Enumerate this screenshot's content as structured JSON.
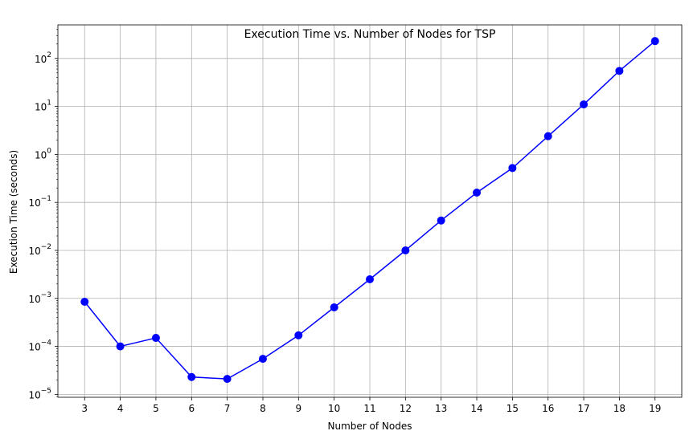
{
  "chart_data": {
    "type": "line",
    "title": "Execution Time vs. Number of Nodes for TSP",
    "xlabel": "Number of Nodes",
    "ylabel": "Execution Time (seconds)",
    "yscale": "log",
    "xlim": [
      2.25,
      19.75
    ],
    "ylim": [
      8.7e-06,
      500
    ],
    "grid": true,
    "x": [
      3,
      4,
      5,
      6,
      7,
      8,
      9,
      10,
      11,
      12,
      13,
      14,
      15,
      16,
      17,
      18,
      19
    ],
    "x_tick_labels": [
      "3",
      "4",
      "5",
      "6",
      "7",
      "8",
      "9",
      "10",
      "11",
      "12",
      "13",
      "14",
      "15",
      "16",
      "17",
      "18",
      "19"
    ],
    "y_tick_values": [
      1e-05,
      0.0001,
      0.001,
      0.01,
      0.1,
      1,
      10,
      100
    ],
    "y_tick_labels": [
      {
        "base": "10",
        "exp": "−5"
      },
      {
        "base": "10",
        "exp": "−4"
      },
      {
        "base": "10",
        "exp": "−3"
      },
      {
        "base": "10",
        "exp": "−2"
      },
      {
        "base": "10",
        "exp": "−1"
      },
      {
        "base": "10",
        "exp": "0"
      },
      {
        "base": "10",
        "exp": "1"
      },
      {
        "base": "10",
        "exp": "2"
      }
    ],
    "series": [
      {
        "color": "#0000ff",
        "marker": "circle",
        "values": [
          0.00085,
          0.0001,
          0.00015,
          2.3e-05,
          2.1e-05,
          5.5e-05,
          0.00017,
          0.00065,
          0.0025,
          0.01,
          0.042,
          0.16,
          0.52,
          2.4,
          11,
          55,
          230
        ]
      }
    ]
  }
}
